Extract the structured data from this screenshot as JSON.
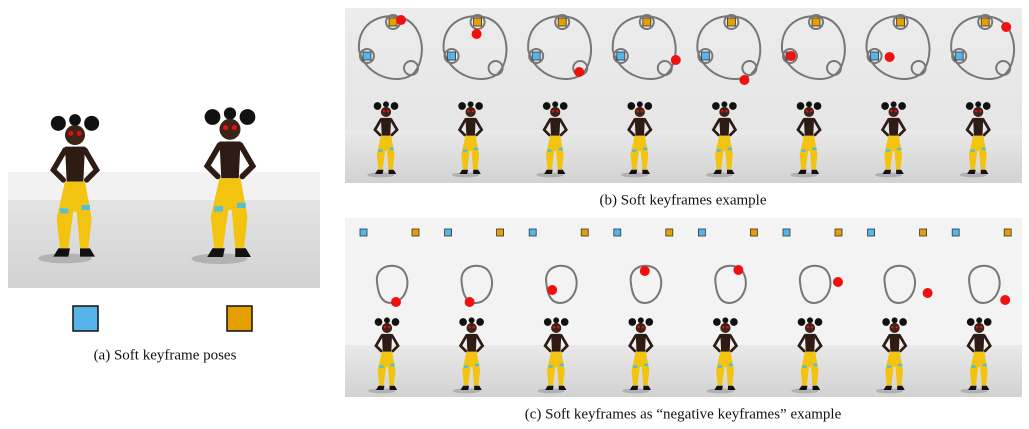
{
  "panels": {
    "a": {
      "caption": "(a) Soft keyframe poses"
    },
    "b": {
      "caption": "(b) Soft keyframes example"
    },
    "c": {
      "caption": "(c) Soft keyframes as “negative keyframes” example"
    }
  }
}
